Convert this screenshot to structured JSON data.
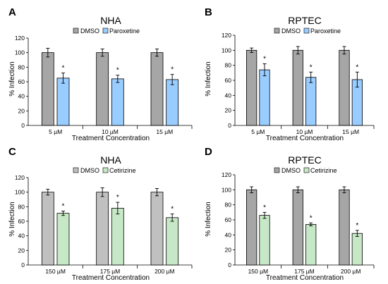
{
  "figure": {
    "panels": [
      {
        "letter": "A",
        "title": "NHA",
        "legend": [
          "DMSO",
          "Paroxetine"
        ],
        "colors": {
          "control": "#a6a6a6",
          "treatment": "#99ccff"
        },
        "ylabel": "% Infection",
        "xlabel": "Treatment Concentration"
      },
      {
        "letter": "B",
        "title": "RPTEC",
        "legend": [
          "DMSO",
          "Paroxetine"
        ],
        "colors": {
          "control": "#a6a6a6",
          "treatment": "#99ccff"
        },
        "ylabel": "% Infection",
        "xlabel": "Treatment Concentration"
      },
      {
        "letter": "C",
        "title": "NHA",
        "legend": [
          "DMSO",
          "Cetirizine"
        ],
        "colors": {
          "control": "#c0c0c0",
          "treatment": "#c6e8c6"
        },
        "ylabel": "% Infection",
        "xlabel": "Treatment Concentration"
      },
      {
        "letter": "D",
        "title": "RPTEC",
        "legend": [
          "DMSO",
          "Cetirizine"
        ],
        "colors": {
          "control": "#a6a6a6",
          "treatment": "#c6e8c6"
        },
        "ylabel": "% Infection",
        "xlabel": "Treatment Concentration"
      }
    ]
  },
  "chart_data": [
    {
      "type": "bar",
      "title": "NHA",
      "xlabel": "Treatment Concentration",
      "ylabel": "% Infection",
      "ylim": [
        0,
        120
      ],
      "yticks": [
        0,
        20,
        40,
        60,
        80,
        100,
        120
      ],
      "categories": [
        "5 µM",
        "10 µM",
        "15 µM"
      ],
      "series": [
        {
          "name": "DMSO",
          "values": [
            100,
            100,
            100
          ],
          "errors": [
            6,
            5,
            5
          ],
          "significant": [
            false,
            false,
            false
          ]
        },
        {
          "name": "Paroxetine",
          "values": [
            65,
            64,
            63
          ],
          "errors": [
            7,
            5,
            7
          ],
          "significant": [
            true,
            true,
            true
          ]
        }
      ],
      "legend_position": "top"
    },
    {
      "type": "bar",
      "title": "RPTEC",
      "xlabel": "Treatment Concentration",
      "ylabel": "% Infection",
      "ylim": [
        0,
        120
      ],
      "yticks": [
        0,
        20,
        40,
        60,
        80,
        100,
        120
      ],
      "categories": [
        "5 µM",
        "10 µM",
        "15 µM"
      ],
      "series": [
        {
          "name": "DMSO",
          "values": [
            100,
            100,
            100
          ],
          "errors": [
            3,
            5,
            5
          ],
          "significant": [
            false,
            false,
            false
          ]
        },
        {
          "name": "Paroxetine",
          "values": [
            74,
            64,
            61
          ],
          "errors": [
            8,
            7,
            10
          ],
          "significant": [
            true,
            true,
            true
          ]
        }
      ],
      "legend_position": "top"
    },
    {
      "type": "bar",
      "title": "NHA",
      "xlabel": "Treatment Concentration",
      "ylabel": "% Infection",
      "ylim": [
        0,
        120
      ],
      "yticks": [
        0,
        20,
        40,
        60,
        80,
        100,
        120
      ],
      "categories": [
        "150 µM",
        "175 µM",
        "200 µM"
      ],
      "series": [
        {
          "name": "DMSO",
          "values": [
            100,
            100,
            100
          ],
          "errors": [
            4,
            6,
            5
          ],
          "significant": [
            false,
            false,
            false
          ]
        },
        {
          "name": "Cetirizine",
          "values": [
            71,
            78,
            65
          ],
          "errors": [
            3,
            8,
            5
          ],
          "significant": [
            true,
            true,
            true
          ]
        }
      ],
      "legend_position": "top"
    },
    {
      "type": "bar",
      "title": "RPTEC",
      "xlabel": "Treatment Concentration",
      "ylabel": "% Infection",
      "ylim": [
        0,
        120
      ],
      "yticks": [
        0,
        20,
        40,
        60,
        80,
        100,
        120
      ],
      "categories": [
        "150 µM",
        "175 µM",
        "200 µM"
      ],
      "series": [
        {
          "name": "DMSO",
          "values": [
            100,
            100,
            100
          ],
          "errors": [
            4,
            4,
            4
          ],
          "significant": [
            false,
            false,
            false
          ]
        },
        {
          "name": "Cetirizine",
          "values": [
            66,
            54,
            42
          ],
          "errors": [
            4,
            2,
            4
          ],
          "significant": [
            true,
            true,
            true
          ]
        }
      ],
      "legend_position": "top"
    }
  ]
}
